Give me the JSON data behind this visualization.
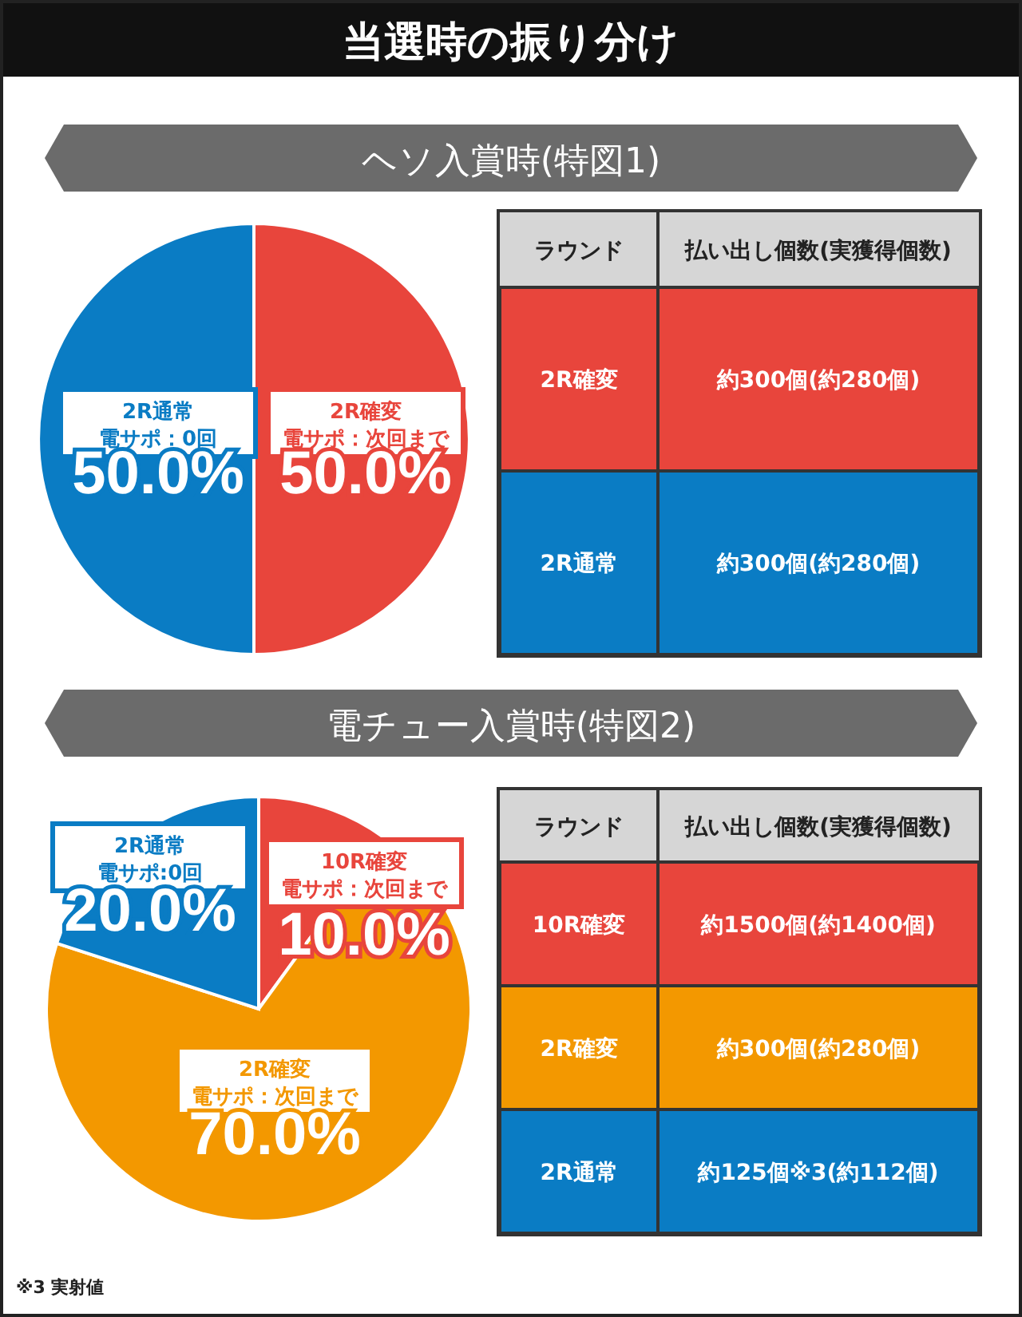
{
  "chart_data": [
    {
      "type": "pie",
      "title": "当選時の振り分け",
      "subtitle": "ヘソ入賞時(特図1)",
      "categories": [
        "2R確変電サポ：次回まで",
        "2R通常電サポ：0回"
      ],
      "values": [
        50,
        50
      ],
      "colors": [
        "#e8453c",
        "#0a7cc4"
      ],
      "value_labels": [
        "50.0%",
        "50.0%"
      ]
    },
    {
      "type": "other",
      "annotations": [
        "ラウンド",
        "払い出し個数(実獲得個数)",
        "2R確変",
        "約300個(約280個)",
        "2R通常",
        "約300個(約280個)"
      ],
      "colors": [
        "#e8453c",
        "#0a7cc4"
      ]
    },
    {
      "type": "pie",
      "title": "電チュー入賞時(特図2)",
      "categories": [
        "10R確変電サポ：次回まで",
        "2R確変電サポ：次回まで",
        "2R通常電サポ:0回"
      ],
      "values": [
        10,
        70,
        20
      ],
      "colors": [
        "#e8453c",
        "#f39800",
        "#0a7cc4"
      ],
      "value_labels": [
        "10.0%",
        "70.0%",
        "20.0%"
      ]
    },
    {
      "type": "other",
      "annotations": [
        "ラウンド",
        "払い出し個数(実獲得個数)",
        "10R確変",
        "約1500個(約1400個)",
        "2R確変",
        "約300個(約280個)",
        "2R通常",
        "約125個※3(約112個)",
        "※3 実射値"
      ],
      "colors": [
        "#e8453c",
        "#f39800",
        "#0a7cc4"
      ]
    }
  ]
}
